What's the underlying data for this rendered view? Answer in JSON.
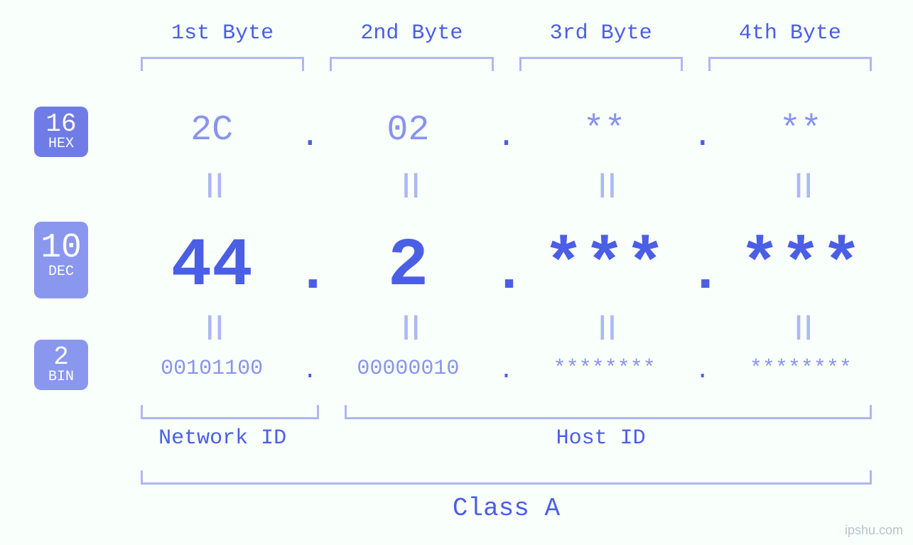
{
  "colors": {
    "background": "#f9fffb",
    "primary": "#4a5ee6",
    "secondary": "#8894ee",
    "bracket": "#aeb8f2",
    "badge_hex_bg": "#6f7ce6",
    "badge_dec_bg": "#8a97ef",
    "badge_bin_bg": "#8a97ef",
    "badge_fg": "#ffffff",
    "watermark": "#b9c2cc"
  },
  "typography": {
    "font_family": "Courier New, monospace",
    "byte_header_fontsize": 30,
    "hex_fontsize": 50,
    "dec_fontsize": 96,
    "bin_fontsize": 30,
    "equals_fontsize": 36,
    "class_label_fontsize": 36,
    "id_label_fontsize": 30
  },
  "byte_headers": [
    "1st Byte",
    "2nd Byte",
    "3rd Byte",
    "4th Byte"
  ],
  "bases": {
    "hex": {
      "num": "16",
      "abbr": "HEX"
    },
    "dec": {
      "num": "10",
      "abbr": "DEC"
    },
    "bin": {
      "num": "2",
      "abbr": "BIN"
    }
  },
  "values": {
    "hex": [
      "2C",
      "02",
      "**",
      "**"
    ],
    "dec": [
      "44",
      "2",
      "***",
      "***"
    ],
    "bin": [
      "00101100",
      "00000010",
      "********",
      "********"
    ]
  },
  "separators": {
    "dot": ".",
    "equals": "||"
  },
  "id_labels": {
    "network": "Network ID",
    "host": "Host ID"
  },
  "class_label": "Class A",
  "ip_class": {
    "network_bytes": 1,
    "host_bytes": 3
  },
  "watermark": "ipshu.com"
}
